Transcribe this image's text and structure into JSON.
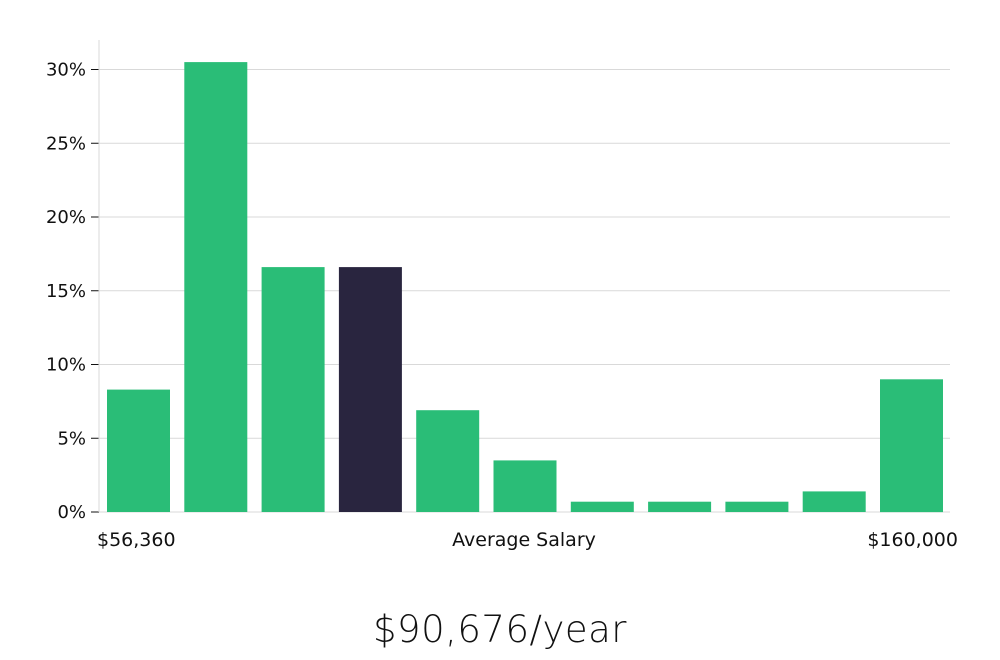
{
  "chart_data": {
    "type": "bar",
    "values": [
      8.3,
      30.5,
      16.6,
      16.6,
      6.9,
      3.5,
      0.7,
      0.7,
      0.7,
      1.4,
      9.0
    ],
    "highlight_index": 3,
    "ylim": [
      0,
      32
    ],
    "yticks": [
      0,
      5,
      10,
      15,
      20,
      25,
      30
    ],
    "ytick_suffix": "%",
    "grid": true,
    "colors": {
      "bar": "#2abd77",
      "highlight": "#29253f",
      "grid": "#d9d9d9"
    },
    "x_min_label": "$56,360",
    "x_mid_label": "Average Salary",
    "x_max_label": "$160,000"
  },
  "headline": "$90,676/year"
}
